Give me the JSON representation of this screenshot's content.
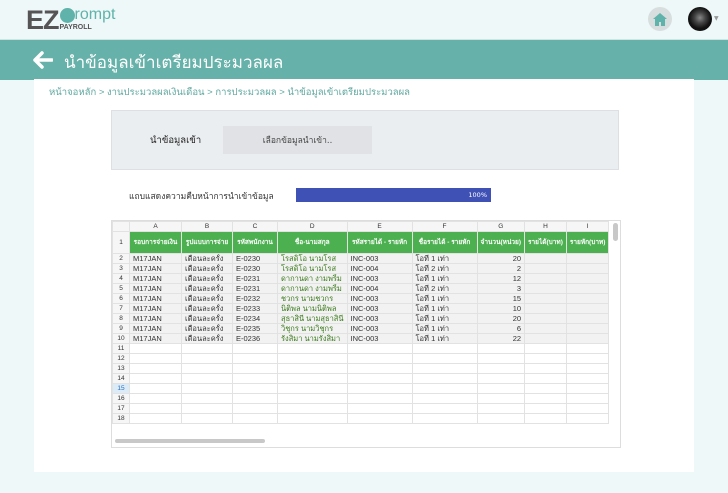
{
  "app": {
    "logo_main": "EZ",
    "logo_sub": "rompt",
    "logo_tag": "PAYROLL"
  },
  "header": {
    "home_icon": "home-icon",
    "avatar": "user-avatar"
  },
  "banner": {
    "title": "นำข้อมูลเข้าเตรียมประมวลผล"
  },
  "breadcrumb": "หน้าจอหลัก > งานประมวลผลเงินเดือน > การประมวลผล > นำข้อมูลเข้าเตรียมประมวลผล",
  "upload": {
    "label": "นำข้อมูลเข้า",
    "button": "เลือกข้อมูลนำเข้า.."
  },
  "progress": {
    "label": "แถบแสดงความคืบหน้าการนำเข้าข้อมูล",
    "value": 100,
    "text": "100%",
    "color": "#3f51b5"
  },
  "sheet": {
    "columns": [
      "A",
      "B",
      "C",
      "D",
      "E",
      "F",
      "G",
      "H",
      "I"
    ],
    "headers": [
      "รอบการจ่ายเงิน",
      "รูปแบบการจ่าย",
      "รหัสพนักงาน",
      "ชื่อ-นามสกุล",
      "รหัสรายได้ - รายหัก",
      "ชื่อรายได้ - รายหัก",
      "จำนวน(หน่วย)",
      "รายได้(บาท)",
      "รายหัก(บาท)"
    ],
    "rows": [
      [
        "M17JAN",
        "เดือนละครั้ง",
        "E-0230",
        "โรสดิโอ นามโรส",
        "INC-003",
        "โอที 1 เท่า",
        "20",
        "",
        ""
      ],
      [
        "M17JAN",
        "เดือนละครั้ง",
        "E-0230",
        "โรสดิโอ นามโรส",
        "INC-004",
        "โอที 2 เท่า",
        "2",
        "",
        ""
      ],
      [
        "M17JAN",
        "เดือนละครั้ง",
        "E-0231",
        "ดากานดา งามพริ้ม",
        "INC-003",
        "โอที 1 เท่า",
        "12",
        "",
        ""
      ],
      [
        "M17JAN",
        "เดือนละครั้ง",
        "E-0231",
        "ดากานดา งามพริ้ม",
        "INC-004",
        "โอที 2 เท่า",
        "3",
        "",
        ""
      ],
      [
        "M17JAN",
        "เดือนละครั้ง",
        "E-0232",
        "ชวกร นามชวกร",
        "INC-003",
        "โอที 1 เท่า",
        "15",
        "",
        ""
      ],
      [
        "M17JAN",
        "เดือนละครั้ง",
        "E-0233",
        "นิติพล นามนิติพล",
        "INC-003",
        "โอที 1 เท่า",
        "10",
        "",
        ""
      ],
      [
        "M17JAN",
        "เดือนละครั้ง",
        "E-0234",
        "สุธาสินี นามสุธาสินี",
        "INC-003",
        "โอที 1 เท่า",
        "20",
        "",
        ""
      ],
      [
        "M17JAN",
        "เดือนละครั้ง",
        "E-0235",
        "วิชุกร นามวิชุกร",
        "INC-003",
        "โอที 1 เท่า",
        "6",
        "",
        ""
      ],
      [
        "M17JAN",
        "เดือนละครั้ง",
        "E-0236",
        "รังสิมา นามรังสิมา",
        "INC-003",
        "โอที 1 เท่า",
        "22",
        "",
        ""
      ]
    ],
    "empty_rows": [
      11,
      12,
      13,
      14,
      15,
      16,
      17,
      18
    ],
    "selected_row": 15,
    "header_color": "#4caf50"
  }
}
